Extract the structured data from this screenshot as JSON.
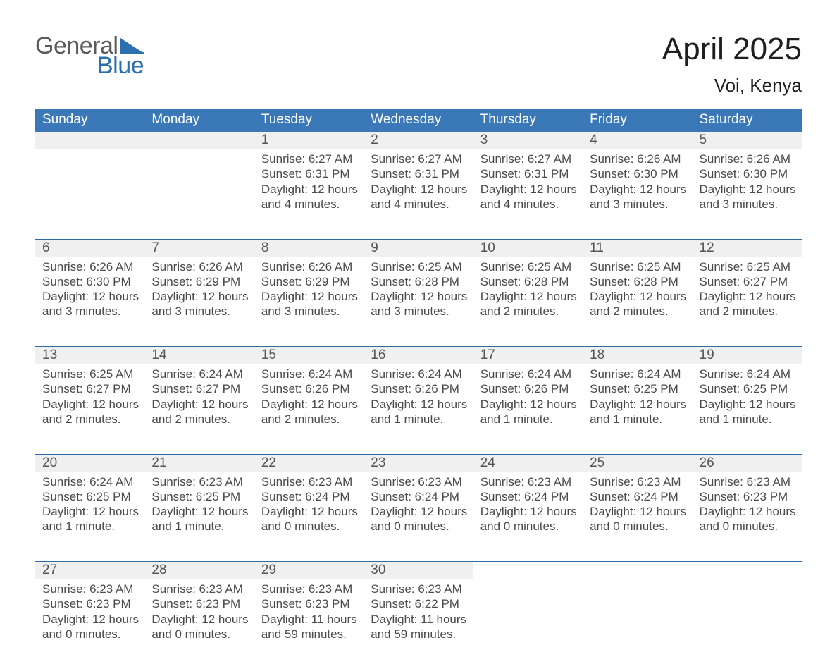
{
  "logo": {
    "word1": "General",
    "word2": "Blue"
  },
  "title": {
    "month": "April 2025",
    "location": "Voi, Kenya"
  },
  "colors": {
    "header_blue": "#3b78b8",
    "accent_blue": "#2f6aa8",
    "daynum_bg": "#f0f0f0",
    "logo_gray": "#5a5a5a",
    "logo_blue": "#2b6fb0",
    "background": "#ffffff"
  },
  "calendar": {
    "type": "table",
    "columns": [
      "Sunday",
      "Monday",
      "Tuesday",
      "Wednesday",
      "Thursday",
      "Friday",
      "Saturday"
    ],
    "weeks": [
      [
        null,
        null,
        {
          "n": 1,
          "sunrise": "6:27 AM",
          "sunset": "6:31 PM",
          "daylight": "12 hours and 4 minutes."
        },
        {
          "n": 2,
          "sunrise": "6:27 AM",
          "sunset": "6:31 PM",
          "daylight": "12 hours and 4 minutes."
        },
        {
          "n": 3,
          "sunrise": "6:27 AM",
          "sunset": "6:31 PM",
          "daylight": "12 hours and 4 minutes."
        },
        {
          "n": 4,
          "sunrise": "6:26 AM",
          "sunset": "6:30 PM",
          "daylight": "12 hours and 3 minutes."
        },
        {
          "n": 5,
          "sunrise": "6:26 AM",
          "sunset": "6:30 PM",
          "daylight": "12 hours and 3 minutes."
        }
      ],
      [
        {
          "n": 6,
          "sunrise": "6:26 AM",
          "sunset": "6:30 PM",
          "daylight": "12 hours and 3 minutes."
        },
        {
          "n": 7,
          "sunrise": "6:26 AM",
          "sunset": "6:29 PM",
          "daylight": "12 hours and 3 minutes."
        },
        {
          "n": 8,
          "sunrise": "6:26 AM",
          "sunset": "6:29 PM",
          "daylight": "12 hours and 3 minutes."
        },
        {
          "n": 9,
          "sunrise": "6:25 AM",
          "sunset": "6:28 PM",
          "daylight": "12 hours and 3 minutes."
        },
        {
          "n": 10,
          "sunrise": "6:25 AM",
          "sunset": "6:28 PM",
          "daylight": "12 hours and 2 minutes."
        },
        {
          "n": 11,
          "sunrise": "6:25 AM",
          "sunset": "6:28 PM",
          "daylight": "12 hours and 2 minutes."
        },
        {
          "n": 12,
          "sunrise": "6:25 AM",
          "sunset": "6:27 PM",
          "daylight": "12 hours and 2 minutes."
        }
      ],
      [
        {
          "n": 13,
          "sunrise": "6:25 AM",
          "sunset": "6:27 PM",
          "daylight": "12 hours and 2 minutes."
        },
        {
          "n": 14,
          "sunrise": "6:24 AM",
          "sunset": "6:27 PM",
          "daylight": "12 hours and 2 minutes."
        },
        {
          "n": 15,
          "sunrise": "6:24 AM",
          "sunset": "6:26 PM",
          "daylight": "12 hours and 2 minutes."
        },
        {
          "n": 16,
          "sunrise": "6:24 AM",
          "sunset": "6:26 PM",
          "daylight": "12 hours and 1 minute."
        },
        {
          "n": 17,
          "sunrise": "6:24 AM",
          "sunset": "6:26 PM",
          "daylight": "12 hours and 1 minute."
        },
        {
          "n": 18,
          "sunrise": "6:24 AM",
          "sunset": "6:25 PM",
          "daylight": "12 hours and 1 minute."
        },
        {
          "n": 19,
          "sunrise": "6:24 AM",
          "sunset": "6:25 PM",
          "daylight": "12 hours and 1 minute."
        }
      ],
      [
        {
          "n": 20,
          "sunrise": "6:24 AM",
          "sunset": "6:25 PM",
          "daylight": "12 hours and 1 minute."
        },
        {
          "n": 21,
          "sunrise": "6:23 AM",
          "sunset": "6:25 PM",
          "daylight": "12 hours and 1 minute."
        },
        {
          "n": 22,
          "sunrise": "6:23 AM",
          "sunset": "6:24 PM",
          "daylight": "12 hours and 0 minutes."
        },
        {
          "n": 23,
          "sunrise": "6:23 AM",
          "sunset": "6:24 PM",
          "daylight": "12 hours and 0 minutes."
        },
        {
          "n": 24,
          "sunrise": "6:23 AM",
          "sunset": "6:24 PM",
          "daylight": "12 hours and 0 minutes."
        },
        {
          "n": 25,
          "sunrise": "6:23 AM",
          "sunset": "6:24 PM",
          "daylight": "12 hours and 0 minutes."
        },
        {
          "n": 26,
          "sunrise": "6:23 AM",
          "sunset": "6:23 PM",
          "daylight": "12 hours and 0 minutes."
        }
      ],
      [
        {
          "n": 27,
          "sunrise": "6:23 AM",
          "sunset": "6:23 PM",
          "daylight": "12 hours and 0 minutes."
        },
        {
          "n": 28,
          "sunrise": "6:23 AM",
          "sunset": "6:23 PM",
          "daylight": "12 hours and 0 minutes."
        },
        {
          "n": 29,
          "sunrise": "6:23 AM",
          "sunset": "6:23 PM",
          "daylight": "11 hours and 59 minutes."
        },
        {
          "n": 30,
          "sunrise": "6:23 AM",
          "sunset": "6:22 PM",
          "daylight": "11 hours and 59 minutes."
        },
        null,
        null,
        null
      ]
    ],
    "labels": {
      "sunrise": "Sunrise:",
      "sunset": "Sunset:",
      "daylight": "Daylight:"
    }
  }
}
